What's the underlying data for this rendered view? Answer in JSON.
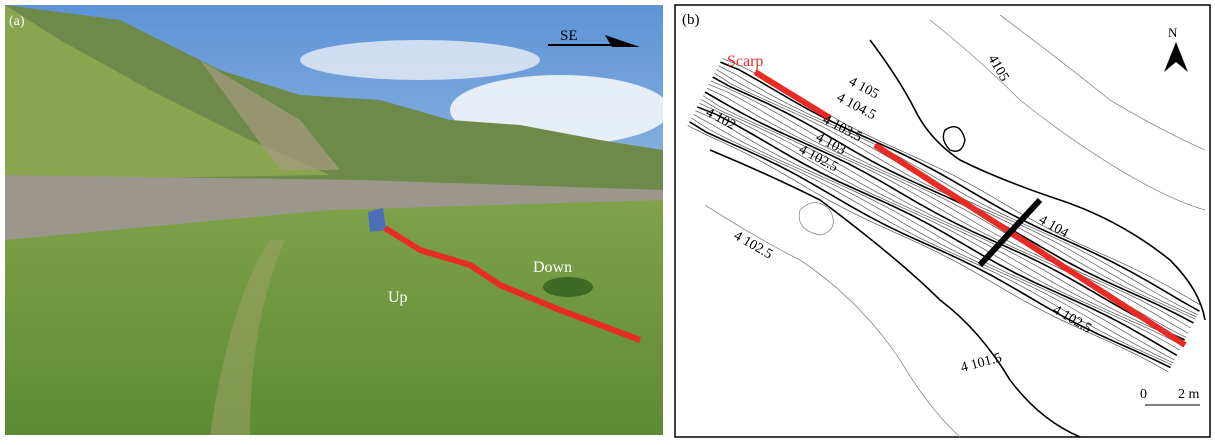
{
  "panel_a": {
    "label": "(a)",
    "direction": "SE",
    "side_labels": [
      "Up",
      "Down"
    ]
  },
  "panel_b": {
    "label": "(b)",
    "north": "N",
    "scarp": "Scarp",
    "contour_labels": [
      "4 105",
      "4 104.5",
      "4 103.5",
      "4 103",
      "4 102",
      "4 102.5",
      "4105",
      "4 104",
      "4 102.5",
      "4 102.5",
      "4 101.5"
    ],
    "scale": {
      "start": "0",
      "end": "2 m"
    }
  }
}
